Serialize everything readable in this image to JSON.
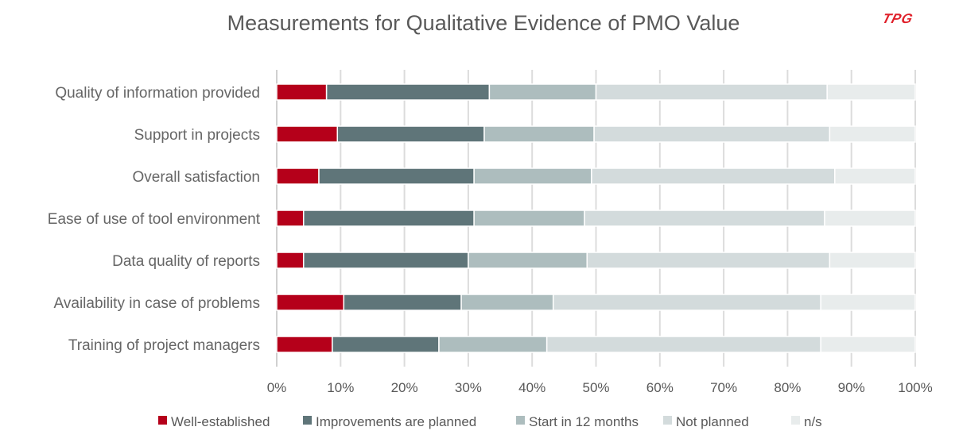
{
  "chart_data": {
    "type": "bar",
    "orientation": "horizontal",
    "stacked": "percent",
    "title": "Measurements for Qualitative Evidence of PMO Value",
    "logo_text": "TPG",
    "categories": [
      "Quality of information provided",
      "Support in projects",
      "Overall satisfaction",
      "Ease of use of tool environment",
      "Data quality of reports",
      "Availability in case of problems",
      "Training of project managers"
    ],
    "series": [
      {
        "name": "Well-established",
        "color": "#b5001a",
        "values": [
          7.8,
          9.5,
          6.6,
          4.2,
          4.2,
          10.5,
          8.7
        ]
      },
      {
        "name": "Improvements are planned",
        "color": "#5f7579",
        "values": [
          25.5,
          23.0,
          24.3,
          26.7,
          25.8,
          18.4,
          16.7
        ]
      },
      {
        "name": "Start in 12 months",
        "color": "#adbdbe",
        "values": [
          16.7,
          17.2,
          18.4,
          17.3,
          18.6,
          14.4,
          16.9
        ]
      },
      {
        "name": "Not planned",
        "color": "#d3dbdc",
        "values": [
          36.2,
          36.9,
          38.1,
          37.6,
          38.0,
          41.9,
          42.9
        ]
      },
      {
        "name": "n/s",
        "color": "#e8ecec",
        "values": [
          13.8,
          13.4,
          12.6,
          14.2,
          13.4,
          14.8,
          14.8
        ]
      }
    ],
    "xlim": [
      0,
      100
    ],
    "xticks": [
      "0%",
      "10%",
      "20%",
      "30%",
      "40%",
      "50%",
      "60%",
      "70%",
      "80%",
      "90%",
      "100%"
    ],
    "grid": true,
    "legend": "bottom"
  }
}
